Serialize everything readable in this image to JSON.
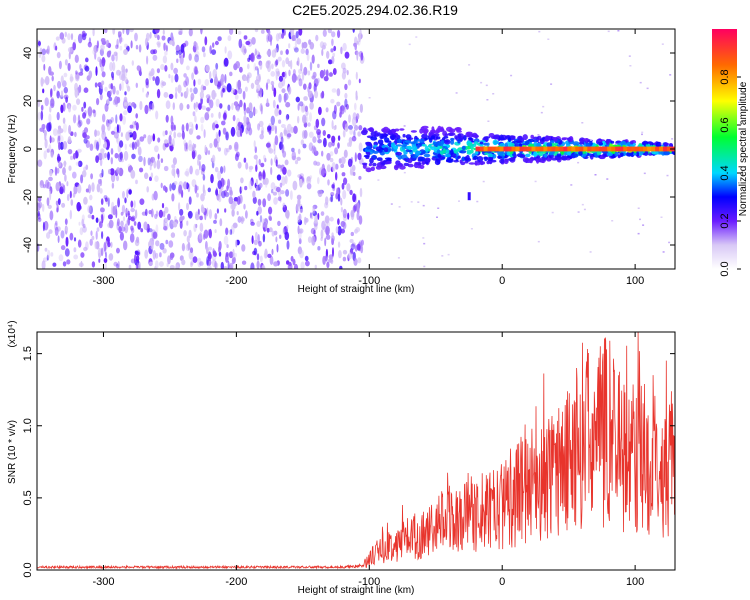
{
  "title": "C2E5.2025.294.02.36.R19",
  "chart_data": [
    {
      "type": "heatmap",
      "xlabel": "Height of straight line (km)",
      "ylabel": "Frequency (Hz)",
      "xlim": [
        -350,
        130
      ],
      "ylim": [
        -50,
        50
      ],
      "xticks": [
        -300,
        -200,
        -100,
        0,
        100
      ],
      "yticks": [
        -40,
        -20,
        0,
        20,
        40
      ],
      "colorbar": {
        "label": "Normalized spectral amplitude",
        "range": [
          0,
          1
        ],
        "ticks": [
          0.0,
          0.2,
          0.4,
          0.6,
          0.8
        ],
        "tick_labels": [
          "0.0",
          "0.2",
          "0.4",
          "0.6",
          "0.8"
        ]
      },
      "regions": [
        {
          "name": "broadband noise",
          "x": [
            -350,
            -105
          ],
          "y": [
            -50,
            50
          ],
          "amplitude": [
            0.05,
            0.2
          ]
        },
        {
          "name": "signal band",
          "x": [
            -105,
            130
          ],
          "y": [
            -10,
            8
          ],
          "amplitude": [
            0.2,
            0.95
          ]
        },
        {
          "name": "strong narrow line",
          "x": [
            -20,
            130
          ],
          "y": [
            -1,
            1
          ],
          "amplitude": [
            0.8,
            0.95
          ]
        }
      ]
    },
    {
      "type": "line",
      "title": "",
      "xlabel": "Height of straight line (km)",
      "ylabel": "SNR (10 * v/v)",
      "y_multiplier": "(x10⁴)",
      "xlim": [
        -350,
        130
      ],
      "ylim": [
        0,
        1.65
      ],
      "xticks": [
        -300,
        -200,
        -100,
        0,
        100
      ],
      "yticks": [
        0.0,
        0.5,
        1.0,
        1.5
      ],
      "ytick_labels": [
        "0.0",
        "0.5",
        "1.0",
        "1.5"
      ],
      "series": [
        {
          "name": "SNR",
          "color": "#e8342c",
          "x": [
            -350,
            -300,
            -250,
            -200,
            -150,
            -120,
            -105,
            -100,
            -90,
            -80,
            -70,
            -60,
            -50,
            -40,
            -30,
            -20,
            -10,
            0,
            10,
            15,
            20,
            30,
            40,
            50,
            55,
            60,
            70,
            80,
            90,
            100,
            110,
            120,
            130
          ],
          "values": [
            0.02,
            0.02,
            0.02,
            0.02,
            0.02,
            0.02,
            0.03,
            0.1,
            0.18,
            0.22,
            0.28,
            0.3,
            0.35,
            0.45,
            0.42,
            0.5,
            0.48,
            0.55,
            0.6,
            0.72,
            0.75,
            0.72,
            0.85,
            0.9,
            1.0,
            1.15,
            1.05,
            1.25,
            1.0,
            0.95,
            0.95,
            0.85,
            0.9
          ]
        }
      ]
    }
  ]
}
